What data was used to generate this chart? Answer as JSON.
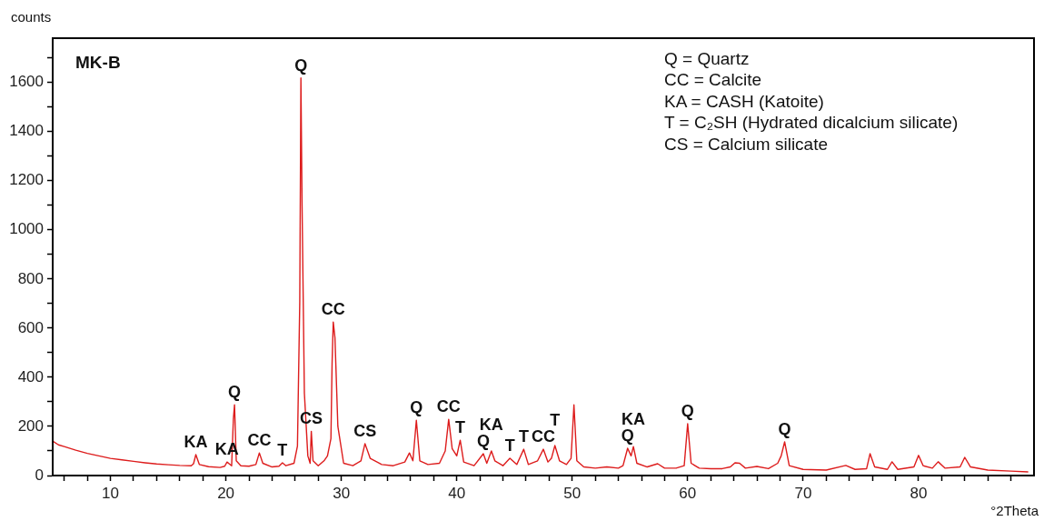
{
  "chart_data": {
    "type": "line",
    "title": "MK-B",
    "xlabel": "°2Theta",
    "ylabel": "counts",
    "color": "#dd1c1c",
    "marker": "none",
    "grid": false,
    "legend": false,
    "xlim": [
      5,
      90
    ],
    "ylim": [
      0,
      1780
    ],
    "xticks": [
      {
        "value": 6,
        "label": null
      },
      {
        "value": 8,
        "label": null
      },
      10,
      {
        "value": 12,
        "label": null
      },
      {
        "value": 14,
        "label": null
      },
      {
        "value": 16,
        "label": null
      },
      {
        "value": 18,
        "label": null
      },
      20,
      {
        "value": 22,
        "label": null
      },
      {
        "value": 24,
        "label": null
      },
      {
        "value": 26,
        "label": null
      },
      {
        "value": 28,
        "label": null
      },
      30,
      {
        "value": 32,
        "label": null
      },
      {
        "value": 34,
        "label": null
      },
      {
        "value": 36,
        "label": null
      },
      {
        "value": 38,
        "label": null
      },
      40,
      {
        "value": 42,
        "label": null
      },
      {
        "value": 44,
        "label": null
      },
      {
        "value": 46,
        "label": null
      },
      {
        "value": 48,
        "label": null
      },
      50,
      {
        "value": 52,
        "label": null
      },
      {
        "value": 54,
        "label": null
      },
      {
        "value": 56,
        "label": null
      },
      {
        "value": 58,
        "label": null
      },
      60,
      {
        "value": 62,
        "label": null
      },
      {
        "value": 64,
        "label": null
      },
      {
        "value": 66,
        "label": null
      },
      {
        "value": 68,
        "label": null
      },
      70,
      {
        "value": 72,
        "label": null
      },
      {
        "value": 74,
        "label": null
      },
      {
        "value": 76,
        "label": null
      },
      {
        "value": 78,
        "label": null
      },
      80,
      {
        "value": 82,
        "label": null
      },
      {
        "value": 84,
        "label": null
      },
      {
        "value": 86,
        "label": null
      },
      {
        "value": 88,
        "label": null
      }
    ],
    "yticks": [
      0,
      {
        "value": 100,
        "label": null
      },
      200,
      {
        "value": 300,
        "label": null
      },
      400,
      {
        "value": 500,
        "label": null
      },
      600,
      {
        "value": 700,
        "label": null
      },
      800,
      {
        "value": 900,
        "label": null
      },
      1000,
      {
        "value": 1100,
        "label": null
      },
      1200,
      {
        "value": 1300,
        "label": null
      },
      1400,
      {
        "value": 1500,
        "label": null
      },
      1600,
      {
        "value": 1700,
        "label": null
      }
    ],
    "x": [
      5,
      5.5,
      6,
      7,
      8,
      9,
      10,
      11,
      12,
      13,
      14,
      15,
      16,
      17,
      17.2,
      17.4,
      17.7,
      18.5,
      19.5,
      19.9,
      20.1,
      20.5,
      20.65,
      20.75,
      20.9,
      21.3,
      22,
      22.6,
      22.9,
      23.2,
      24,
      24.6,
      24.9,
      25.2,
      25.9,
      26.2,
      26.4,
      26.5,
      26.6,
      26.8,
      27.1,
      27.3,
      27.4,
      27.55,
      28,
      28.5,
      28.8,
      29.1,
      29.2,
      29.3,
      29.45,
      29.7,
      30.2,
      31,
      31.7,
      32.05,
      32.5,
      33.5,
      34.5,
      35.5,
      35.9,
      36.2,
      36.5,
      36.8,
      37.5,
      38.5,
      39,
      39.3,
      39.6,
      40,
      40.3,
      40.6,
      41.5,
      42.3,
      42.6,
      43,
      43.3,
      44,
      44.6,
      45.2,
      45.8,
      46.2,
      47,
      47.5,
      47.9,
      48.2,
      48.5,
      48.9,
      49.5,
      49.9,
      50.15,
      50.4,
      51,
      52,
      53,
      54,
      54.4,
      54.8,
      55.1,
      55.3,
      55.6,
      56.5,
      57.4,
      58,
      59,
      59.7,
      60,
      60.3,
      61,
      62,
      63,
      63.7,
      64.1,
      64.5,
      65,
      66,
      67,
      67.8,
      68.1,
      68.4,
      68.8,
      70,
      72,
      73.7,
      74.5,
      75.5,
      75.8,
      76.2,
      77.3,
      77.7,
      78.2,
      79.6,
      80,
      80.4,
      81.2,
      81.7,
      82.3,
      83.6,
      84,
      84.5,
      86,
      88,
      89.5
    ],
    "values": [
      140,
      125,
      118,
      103,
      90,
      80,
      70,
      64,
      58,
      52,
      47,
      44,
      41,
      40,
      48,
      85,
      45,
      36,
      33,
      38,
      55,
      40,
      230,
      288,
      60,
      40,
      38,
      45,
      92,
      50,
      35,
      38,
      52,
      40,
      50,
      120,
      706,
      1618,
      1100,
      336,
      80,
      50,
      180,
      60,
      40,
      60,
      80,
      150,
      455,
      625,
      560,
      200,
      50,
      40,
      60,
      130,
      70,
      45,
      40,
      55,
      92,
      60,
      225,
      60,
      45,
      50,
      100,
      229,
      110,
      80,
      144,
      55,
      40,
      89,
      50,
      100,
      60,
      40,
      70,
      45,
      107,
      45,
      60,
      107,
      55,
      70,
      122,
      60,
      45,
      70,
      288,
      60,
      35,
      30,
      35,
      30,
      40,
      111,
      80,
      118,
      50,
      35,
      48,
      30,
      30,
      40,
      211,
      50,
      30,
      28,
      28,
      35,
      52,
      50,
      30,
      37,
      28,
      50,
      80,
      137,
      40,
      25,
      22,
      41,
      25,
      28,
      89,
      35,
      25,
      56,
      25,
      35,
      82,
      40,
      30,
      56,
      30,
      35,
      74,
      35,
      22,
      18,
      15
    ],
    "annotations": [
      "Q = Quartz",
      "CC = Calcite",
      "KA = CASH (Katoite)",
      "T = C₂SH (Hydrated dicalcium silicate)",
      "CS = Calcium silicate",
      {
        "text": "KA",
        "x": 17.4,
        "y": 85
      },
      {
        "text": "KA",
        "x": 20.1,
        "y": 55
      },
      {
        "text": "Q",
        "x": 20.75,
        "y": 288
      },
      {
        "text": "CC",
        "x": 22.9,
        "y": 92
      },
      {
        "text": "T",
        "x": 24.9,
        "y": 52
      },
      {
        "text": "Q",
        "x": 26.5,
        "y": 1618
      },
      {
        "text": "CS",
        "x": 27.4,
        "y": 180
      },
      {
        "text": "CC",
        "x": 29.3,
        "y": 625
      },
      {
        "text": "CS",
        "x": 32.05,
        "y": 130
      },
      {
        "text": "Q",
        "x": 36.5,
        "y": 225
      },
      {
        "text": "CC",
        "x": 39.3,
        "y": 229
      },
      {
        "text": "T",
        "x": 40.3,
        "y": 144
      },
      {
        "text": "Q",
        "x": 42.3,
        "y": 89
      },
      {
        "text": "KA",
        "x": 43,
        "y": 100
      },
      {
        "text": "T",
        "x": 44.6,
        "y": 70
      },
      {
        "text": "T",
        "x": 45.8,
        "y": 107
      },
      {
        "text": "CC",
        "x": 47.5,
        "y": 107
      },
      {
        "text": "T",
        "x": 48.5,
        "y": 122
      },
      {
        "text": "Q",
        "x": 54.8,
        "y": 111
      },
      {
        "text": "KA",
        "x": 55.3,
        "y": 118
      },
      {
        "text": "Q",
        "x": 60,
        "y": 211
      },
      {
        "text": "Q",
        "x": 68.4,
        "y": 137
      }
    ]
  }
}
